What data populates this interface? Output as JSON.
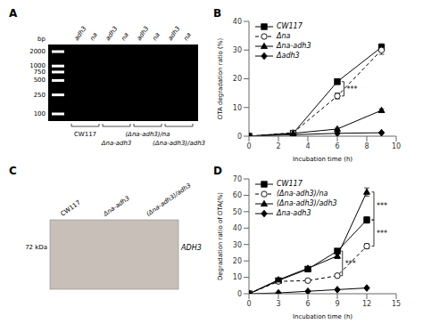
{
  "chart_data": [
    {
      "type": "gel",
      "title": "A",
      "ylabel": "bp",
      "yticks": [
        2000,
        1000,
        750,
        500,
        250,
        100
      ],
      "categories": [
        "adh3",
        "na",
        "adh3",
        "na",
        "adh3",
        "na",
        "adh3",
        "na"
      ],
      "annotations": [
        "CW117",
        "Δna-adh3",
        "(Δna-adh3)/na",
        "(Δna-adh3)/adh3"
      ]
    },
    {
      "type": "line",
      "title": "B",
      "xlabel": "Incubation time (h)",
      "ylabel": "OTA degradation ratio (%)",
      "xlim": [
        0,
        10
      ],
      "ylim": [
        0,
        40
      ],
      "xticks": [
        0,
        2,
        4,
        6,
        8,
        10
      ],
      "yticks": [
        0,
        10,
        20,
        30,
        40
      ],
      "legend": "upper left",
      "series": [
        {
          "name": "CW117",
          "color": "#000000",
          "marker": "square",
          "line_style": "solid",
          "x": [
            0,
            3,
            6,
            9
          ],
          "values": [
            0,
            1.0,
            19.0,
            31.0
          ],
          "errors": [
            0,
            0.3,
            1.0,
            1.2
          ]
        },
        {
          "name": "Δna",
          "color": "#000000",
          "marker": "open_circle",
          "line_style": "dashed",
          "x": [
            0,
            3,
            6,
            9
          ],
          "values": [
            0,
            1.2,
            14.0,
            30.0
          ],
          "errors": [
            0,
            0.3,
            1.0,
            1.5
          ]
        },
        {
          "name": "Δna-adh3",
          "color": "#000000",
          "marker": "triangle",
          "line_style": "solid",
          "x": [
            0,
            3,
            6,
            9
          ],
          "values": [
            0,
            1.0,
            2.5,
            9.0
          ],
          "errors": [
            0,
            0.2,
            0.3,
            0.5
          ]
        },
        {
          "name": "Δadh3",
          "color": "#000000",
          "marker": "diamond",
          "line_style": "solid",
          "x": [
            0,
            3,
            6,
            9
          ],
          "values": [
            0,
            0.5,
            1.0,
            1.2
          ],
          "errors": [
            0,
            0.1,
            0.2,
            0.2
          ]
        }
      ],
      "annotations": [
        {
          "text": "***",
          "x": 6.3,
          "y": [
            19.0,
            14.0
          ]
        }
      ]
    },
    {
      "type": "blot",
      "title": "C",
      "categories": [
        "CW117",
        "Δna-adh3",
        "(Δna-adh3)/adh3"
      ],
      "annotations": [
        "72 kDa",
        "ADH3"
      ],
      "color": "#c8c0b8"
    },
    {
      "type": "line",
      "title": "D",
      "xlabel": "Incubation time (h)",
      "ylabel": "Degradation ratio of OTA(%)",
      "xlim": [
        0,
        15
      ],
      "ylim": [
        0,
        70
      ],
      "xticks": [
        0,
        3,
        6,
        9,
        12,
        15
      ],
      "yticks": [
        0,
        10,
        20,
        30,
        40,
        50,
        60,
        70
      ],
      "legend": "upper left",
      "series": [
        {
          "name": "CW117",
          "color": "#000000",
          "marker": "square",
          "line_style": "solid",
          "x": [
            0,
            3,
            6,
            9,
            12
          ],
          "values": [
            0,
            8.0,
            15.0,
            26.0,
            45.0
          ],
          "errors": [
            0,
            0.5,
            0.8,
            1.5,
            2.0
          ]
        },
        {
          "name": "(Δna-adh3)/na",
          "color": "#000000",
          "marker": "open_circle",
          "line_style": "dashed",
          "x": [
            0,
            3,
            6,
            9,
            12
          ],
          "values": [
            0,
            7.5,
            8.0,
            11.0,
            29.0
          ],
          "errors": [
            0,
            0.5,
            0.6,
            1.0,
            1.5
          ]
        },
        {
          "name": "(Δna-adh3)/adh3",
          "color": "#000000",
          "marker": "triangle",
          "line_style": "solid",
          "x": [
            0,
            3,
            6,
            9,
            12
          ],
          "values": [
            0,
            8.5,
            15.5,
            23.0,
            62.0
          ],
          "errors": [
            0,
            0.5,
            0.8,
            1.5,
            2.5
          ]
        },
        {
          "name": "Δna-adh3",
          "color": "#000000",
          "marker": "diamond",
          "line_style": "solid",
          "x": [
            0,
            3,
            6,
            9,
            12
          ],
          "values": [
            0,
            0.5,
            1.5,
            2.5,
            3.5
          ],
          "errors": [
            0,
            0.1,
            0.2,
            0.3,
            0.3
          ]
        }
      ],
      "annotations": [
        {
          "text": "***",
          "x": 9.3,
          "y": [
            26.0,
            11.0
          ]
        },
        {
          "text": "***",
          "x": 12.5,
          "y": [
            62.0,
            45.0
          ]
        },
        {
          "text": "***",
          "x": 12.5,
          "y": [
            45.0,
            29.0
          ]
        }
      ]
    }
  ]
}
